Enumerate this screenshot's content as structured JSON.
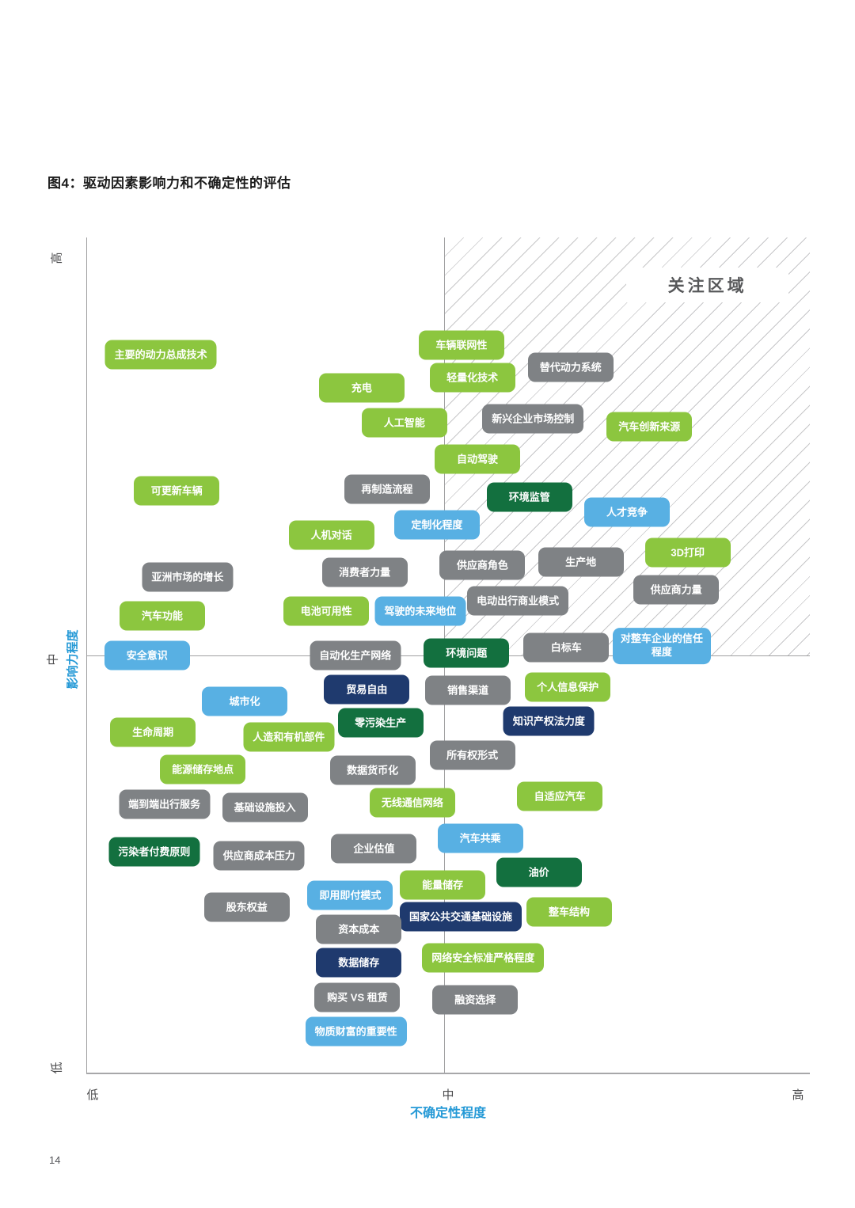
{
  "page": {
    "number": "14"
  },
  "figure": {
    "title": "图4：驱动因素影响力和不确定性的评估"
  },
  "chart_data": {
    "type": "scatter",
    "title": "图4：驱动因素影响力和不确定性的评估",
    "xlabel": "不确定性程度",
    "ylabel": "影响力程度",
    "x_ticks": [
      "低",
      "中",
      "高"
    ],
    "y_ticks": [
      "高",
      "中",
      "低"
    ],
    "grid": false,
    "focus_region": {
      "label": "关注区域",
      "x_range": "中 到 高 (不确定性)",
      "y_range": "中 到 高 (影响力)"
    },
    "palette": {
      "green": "#8CC63F",
      "gray": "#7F8285",
      "darkgreen": "#13703F",
      "blue": "#58B0E3",
      "navy": "#1F3A6E"
    },
    "axis_title_color": "#2499D6",
    "position_units": "percent of plot area, x from left (low→high uncertainty), y from top (high→low impact)",
    "items": [
      {
        "label": "主要的动力总成技术",
        "color": "green",
        "x": 10.2,
        "y": 14.0
      },
      {
        "label": "车辆联网性",
        "color": "green",
        "x": 51.8,
        "y": 12.9
      },
      {
        "label": "轻量化技术",
        "color": "green",
        "x": 53.3,
        "y": 16.8
      },
      {
        "label": "替代动力系统",
        "color": "gray",
        "x": 66.9,
        "y": 15.5
      },
      {
        "label": "充电",
        "color": "green",
        "x": 38.0,
        "y": 18.0
      },
      {
        "label": "人工智能",
        "color": "green",
        "x": 43.9,
        "y": 22.2
      },
      {
        "label": "新兴企业市场控制",
        "color": "gray",
        "x": 61.7,
        "y": 21.7
      },
      {
        "label": "汽车创新来源",
        "color": "green",
        "x": 77.8,
        "y": 22.7
      },
      {
        "label": "自动驾驶",
        "color": "green",
        "x": 54.0,
        "y": 26.5
      },
      {
        "label": "可更新车辆",
        "color": "green",
        "x": 12.4,
        "y": 30.3
      },
      {
        "label": "再制造流程",
        "color": "gray",
        "x": 41.5,
        "y": 30.1
      },
      {
        "label": "环境监管",
        "color": "darkgreen",
        "x": 61.2,
        "y": 31.1
      },
      {
        "label": "人才竞争",
        "color": "blue",
        "x": 74.7,
        "y": 32.9
      },
      {
        "label": "定制化程度",
        "color": "blue",
        "x": 48.4,
        "y": 34.4
      },
      {
        "label": "人机对话",
        "color": "green",
        "x": 33.8,
        "y": 35.6
      },
      {
        "label": "3D打印",
        "color": "green",
        "x": 83.1,
        "y": 37.7
      },
      {
        "label": "亚洲市场的增长",
        "color": "gray",
        "x": 13.9,
        "y": 40.7
      },
      {
        "label": "消费者力量",
        "color": "gray",
        "x": 38.4,
        "y": 40.1
      },
      {
        "label": "供应商角色",
        "color": "gray",
        "x": 54.7,
        "y": 39.2
      },
      {
        "label": "生产地",
        "color": "gray",
        "x": 68.3,
        "y": 38.9
      },
      {
        "label": "供应商力量",
        "color": "gray",
        "x": 81.5,
        "y": 42.2
      },
      {
        "label": "电动出行商业模式",
        "color": "gray",
        "x": 59.6,
        "y": 43.5
      },
      {
        "label": "电池可用性",
        "color": "green",
        "x": 33.1,
        "y": 44.7
      },
      {
        "label": "驾驶的未来地位",
        "color": "blue",
        "x": 46.1,
        "y": 44.7
      },
      {
        "label": "汽车功能",
        "color": "green",
        "x": 10.4,
        "y": 45.3
      },
      {
        "label": "安全意识",
        "color": "blue",
        "x": 8.3,
        "y": 50.0
      },
      {
        "label": "自动化生产网络",
        "color": "gray",
        "x": 37.1,
        "y": 50.0
      },
      {
        "label": "环境问题",
        "color": "darkgreen",
        "x": 52.5,
        "y": 49.8
      },
      {
        "label": "白标车",
        "color": "gray",
        "x": 66.3,
        "y": 49.1
      },
      {
        "label": "对整车企业的信任程度",
        "color": "blue",
        "x": 79.5,
        "y": 48.9,
        "wrap": true
      },
      {
        "label": "贸易自由",
        "color": "navy",
        "x": 38.7,
        "y": 54.1
      },
      {
        "label": "销售渠道",
        "color": "gray",
        "x": 52.7,
        "y": 54.2
      },
      {
        "label": "个人信息保护",
        "color": "green",
        "x": 66.5,
        "y": 53.8
      },
      {
        "label": "城市化",
        "color": "blue",
        "x": 21.8,
        "y": 55.5
      },
      {
        "label": "知识产权法力度",
        "color": "navy",
        "x": 63.9,
        "y": 57.9
      },
      {
        "label": "零污染生产",
        "color": "darkgreen",
        "x": 40.6,
        "y": 58.1
      },
      {
        "label": "生命周期",
        "color": "green",
        "x": 9.1,
        "y": 59.2
      },
      {
        "label": "人造和有机部件",
        "color": "green",
        "x": 27.9,
        "y": 59.8
      },
      {
        "label": "所有权形式",
        "color": "gray",
        "x": 53.3,
        "y": 62.0
      },
      {
        "label": "能源储存地点",
        "color": "green",
        "x": 16.0,
        "y": 63.7
      },
      {
        "label": "数据货币化",
        "color": "gray",
        "x": 39.5,
        "y": 63.8
      },
      {
        "label": "端到端出行服务",
        "color": "gray",
        "x": 10.7,
        "y": 67.9
      },
      {
        "label": "基础设施投入",
        "color": "gray",
        "x": 24.6,
        "y": 68.2
      },
      {
        "label": "无线通信网络",
        "color": "green",
        "x": 45.0,
        "y": 67.7
      },
      {
        "label": "自适应汽车",
        "color": "green",
        "x": 65.4,
        "y": 66.9
      },
      {
        "label": "汽车共乘",
        "color": "blue",
        "x": 54.4,
        "y": 71.9
      },
      {
        "label": "污染者付费原则",
        "color": "darkgreen",
        "x": 9.3,
        "y": 73.6
      },
      {
        "label": "供应商成本压力",
        "color": "gray",
        "x": 23.8,
        "y": 74.0
      },
      {
        "label": "企业估值",
        "color": "gray",
        "x": 39.7,
        "y": 73.2
      },
      {
        "label": "能量储存",
        "color": "green",
        "x": 49.2,
        "y": 77.5
      },
      {
        "label": "油价",
        "color": "darkgreen",
        "x": 62.5,
        "y": 76.0
      },
      {
        "label": "即用即付模式",
        "color": "blue",
        "x": 36.4,
        "y": 78.8
      },
      {
        "label": "股东权益",
        "color": "gray",
        "x": 22.1,
        "y": 80.2
      },
      {
        "label": "国家公共交通基础设施",
        "color": "navy",
        "x": 51.7,
        "y": 81.3
      },
      {
        "label": "整车结构",
        "color": "green",
        "x": 66.7,
        "y": 80.8
      },
      {
        "label": "资本成本",
        "color": "gray",
        "x": 37.6,
        "y": 82.8
      },
      {
        "label": "数据储存",
        "color": "navy",
        "x": 37.6,
        "y": 86.8
      },
      {
        "label": "网络安全标准严格程度",
        "color": "green",
        "x": 54.8,
        "y": 86.3
      },
      {
        "label": "购买 VS 租赁",
        "color": "gray",
        "x": 37.4,
        "y": 91.0
      },
      {
        "label": "融资选择",
        "color": "gray",
        "x": 53.7,
        "y": 91.3
      },
      {
        "label": "物质财富的重要性",
        "color": "blue",
        "x": 37.2,
        "y": 95.1
      }
    ]
  }
}
